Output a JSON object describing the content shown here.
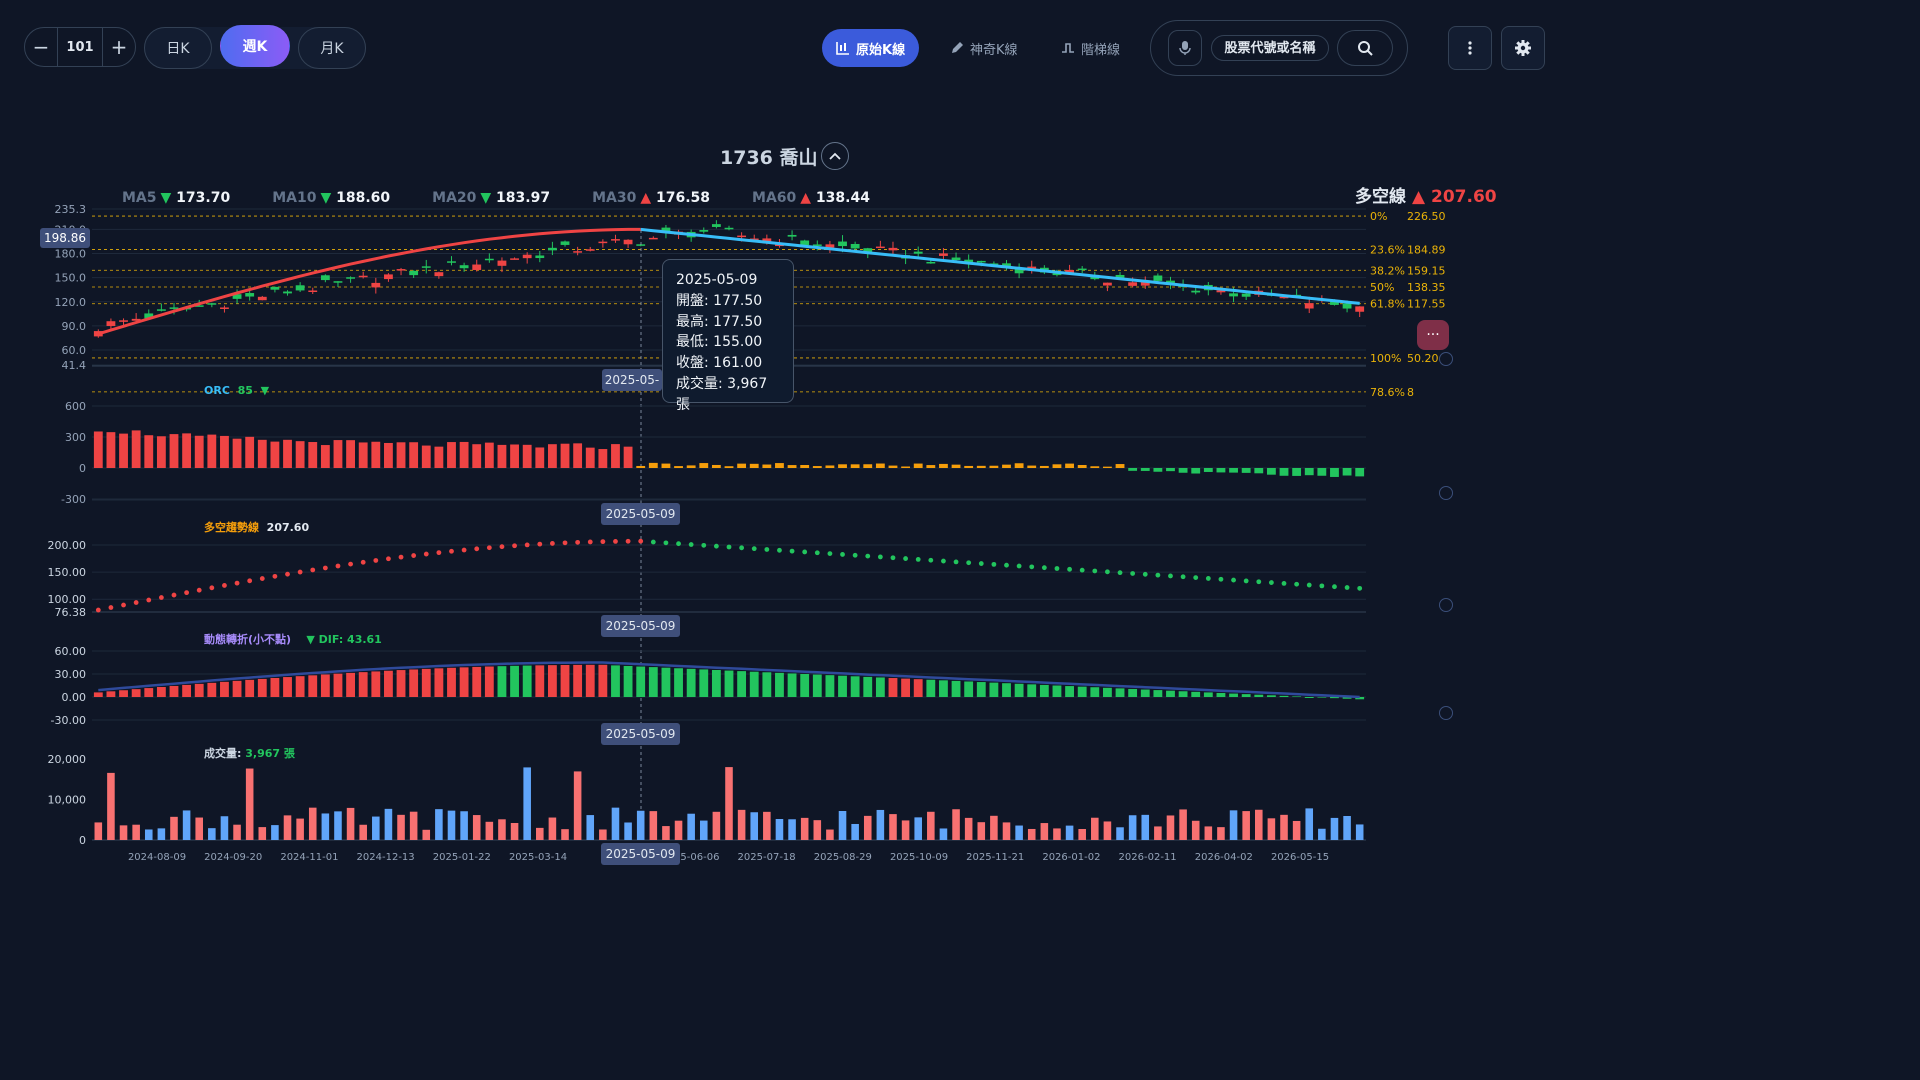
{
  "toolbar": {
    "stepper_value": "101",
    "minus": "−",
    "plus": "+",
    "periods": [
      "日K",
      "週K",
      "月K"
    ],
    "active_period": "週K",
    "modes": [
      "原始K線",
      "神奇K線",
      "階梯線"
    ],
    "active_mode": "原始K線",
    "search_placeholder": "股票代號或名稱"
  },
  "title": "1736 喬山",
  "ma": [
    {
      "label": "MA5",
      "dir": "down",
      "value": "173.70"
    },
    {
      "label": "MA10",
      "dir": "down",
      "value": "188.60"
    },
    {
      "label": "MA20",
      "dir": "down",
      "value": "183.97"
    },
    {
      "label": "MA30",
      "dir": "up",
      "value": "176.58"
    },
    {
      "label": "MA60",
      "dir": "up",
      "value": "138.44"
    }
  ],
  "duokong": {
    "label": "多空線",
    "arrow": "▲",
    "value": "207.60"
  },
  "price_tag": "198.86",
  "price_axis": {
    "ticks": [
      "235.3",
      "210.0",
      "180.0",
      "150.0",
      "120.0",
      "90.0",
      "60.0",
      "41.4"
    ]
  },
  "fib": [
    {
      "label": "0%",
      "value": "226.50"
    },
    {
      "label": "23.6%",
      "value": "184.89"
    },
    {
      "label": "38.2%",
      "value": "159.15"
    },
    {
      "label": "50%",
      "value": "138.35"
    },
    {
      "label": "61.8%",
      "value": "117.55"
    },
    {
      "label": "78.6%",
      "value": "8"
    },
    {
      "label": "100%",
      "value": "50.20"
    }
  ],
  "tooltip": {
    "date": "2025-05-09",
    "open": "開盤: 177.50",
    "high": "最高: 177.50",
    "low": "最低: 155.00",
    "close": "收盤: 161.00",
    "volume": "成交量: 3,967 張"
  },
  "crosshair_date": "2025-05-09",
  "crosshair_date_partial": "2025-05-",
  "orc": {
    "label": "ORC",
    "value": "85",
    "arrow": "▼",
    "ticks": [
      "600",
      "300",
      "0",
      "-300"
    ]
  },
  "trend": {
    "label": "多空趨勢線",
    "value": "207.60",
    "ticks": [
      "200.00",
      "150.00",
      "100.00",
      "76.38"
    ]
  },
  "dyn": {
    "label": "動態轉折(小不點)",
    "dif": "▼ DIF: 43.61",
    "ticks": [
      "60.00",
      "30.00",
      "0.00",
      "-30.00"
    ]
  },
  "volume": {
    "label": "成交量:",
    "value": "3,967 張",
    "ticks": [
      "20,000",
      "10,000",
      "0"
    ]
  },
  "x_dates": [
    "2024-08-09",
    "2024-09-20",
    "2024-11-01",
    "2024-12-13",
    "2025-01-22",
    "2025-03-14",
    "2025-05-09",
    "2025-06-06",
    "2025-07-18",
    "2025-08-29",
    "2025-10-09",
    "2025-11-21",
    "2026-01-02",
    "2026-02-11",
    "2026-04-02",
    "2026-05-15"
  ],
  "colors": {
    "up": "#ef4444",
    "down": "#22c55e",
    "vol_down": "#60a5fa",
    "neutral": "#f59e0b",
    "fib": "#eab308",
    "ma_up": "#ef4444",
    "ma_down": "#38bdf8"
  }
}
